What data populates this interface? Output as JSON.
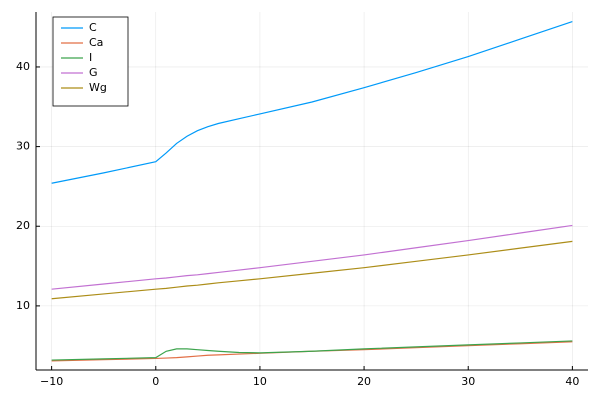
{
  "chart_data": {
    "type": "line",
    "x": [
      -10,
      -5,
      0,
      1,
      2,
      3,
      4,
      5,
      6,
      8,
      10,
      15,
      20,
      25,
      30,
      35,
      40
    ],
    "series": [
      {
        "name": "C",
        "color": "#009af9",
        "values": [
          25.4,
          26.7,
          28.1,
          29.2,
          30.4,
          31.3,
          32.0,
          32.5,
          32.9,
          33.5,
          34.1,
          35.6,
          37.4,
          39.3,
          41.3,
          43.5,
          45.7
        ]
      },
      {
        "name": "Ca",
        "color": "#e26f46",
        "values": [
          3.1,
          3.25,
          3.4,
          3.45,
          3.5,
          3.6,
          3.7,
          3.8,
          3.85,
          3.95,
          4.05,
          4.3,
          4.5,
          4.75,
          5.0,
          5.25,
          5.5
        ]
      },
      {
        "name": "I",
        "color": "#3da44d",
        "values": [
          3.2,
          3.35,
          3.5,
          4.3,
          4.6,
          4.6,
          4.5,
          4.4,
          4.3,
          4.15,
          4.1,
          4.3,
          4.6,
          4.85,
          5.1,
          5.35,
          5.6
        ]
      },
      {
        "name": "G",
        "color": "#c271d2",
        "values": [
          12.1,
          12.75,
          13.4,
          13.5,
          13.65,
          13.8,
          13.9,
          14.05,
          14.2,
          14.5,
          14.8,
          15.6,
          16.4,
          17.3,
          18.2,
          19.15,
          20.1
        ]
      },
      {
        "name": "Wg",
        "color": "#ac8d18",
        "values": [
          10.9,
          11.5,
          12.1,
          12.2,
          12.35,
          12.5,
          12.6,
          12.75,
          12.9,
          13.15,
          13.4,
          14.1,
          14.8,
          15.6,
          16.4,
          17.25,
          18.1
        ]
      }
    ],
    "xlim": [
      -11.5,
      41.5
    ],
    "xticks": [
      {
        "value": -10,
        "label": "−10"
      },
      0,
      10,
      20,
      30,
      40
    ],
    "ylim": [
      1.95,
      46.9
    ],
    "yticks": [
      10,
      20,
      30,
      40
    ],
    "grid": true,
    "legend": "top-left"
  }
}
